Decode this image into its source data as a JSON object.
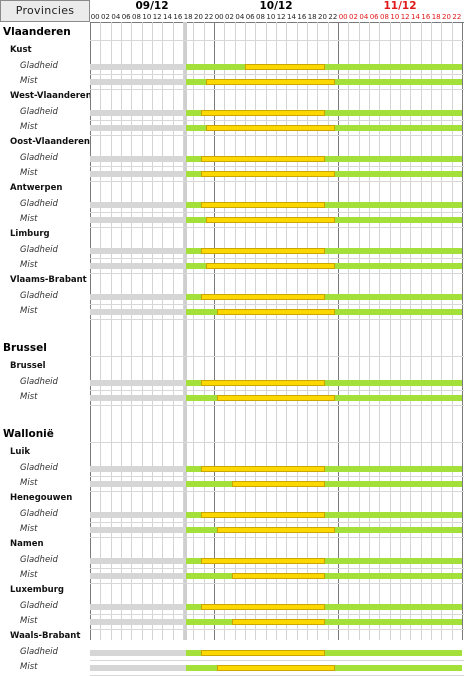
{
  "header": {
    "corner_label": "Provincies",
    "dates": [
      {
        "label": "09/12",
        "color": "#000000"
      },
      {
        "label": "10/12",
        "color": "#000000"
      },
      {
        "label": "11/12",
        "color": "#e01818"
      }
    ],
    "hours": [
      "00",
      "02",
      "04",
      "06",
      "08",
      "10",
      "12",
      "14",
      "16",
      "18",
      "20",
      "22"
    ]
  },
  "colors": {
    "past": "#d6d6d6",
    "green": "#a4e03a",
    "yellow": "#fdd700",
    "weekend": "#e01818"
  },
  "groups": [
    {
      "region": "Vlaanderen",
      "provinces": [
        {
          "name": "Kust",
          "rows": [
            {
              "label": "Gladheid",
              "segments": [
                {
                  "from": 0,
                  "to": 37,
                  "color": "past"
                },
                {
                  "from": 37,
                  "to": 144,
                  "color": "green"
                },
                {
                  "from": 60,
                  "to": 91,
                  "color": "yellow"
                }
              ]
            },
            {
              "label": "Mist",
              "segments": [
                {
                  "from": 0,
                  "to": 37,
                  "color": "past"
                },
                {
                  "from": 37,
                  "to": 144,
                  "color": "green"
                },
                {
                  "from": 45,
                  "to": 95,
                  "color": "yellow"
                }
              ]
            }
          ]
        },
        {
          "name": "West-Vlaanderen",
          "rows": [
            {
              "label": "Gladheid",
              "segments": [
                {
                  "from": 0,
                  "to": 37,
                  "color": "past"
                },
                {
                  "from": 37,
                  "to": 144,
                  "color": "green"
                },
                {
                  "from": 43,
                  "to": 91,
                  "color": "yellow"
                }
              ]
            },
            {
              "label": "Mist",
              "segments": [
                {
                  "from": 0,
                  "to": 37,
                  "color": "past"
                },
                {
                  "from": 37,
                  "to": 144,
                  "color": "green"
                },
                {
                  "from": 45,
                  "to": 95,
                  "color": "yellow"
                }
              ]
            }
          ]
        },
        {
          "name": "Oost-Vlaanderen",
          "rows": [
            {
              "label": "Gladheid",
              "segments": [
                {
                  "from": 0,
                  "to": 37,
                  "color": "past"
                },
                {
                  "from": 37,
                  "to": 144,
                  "color": "green"
                },
                {
                  "from": 43,
                  "to": 91,
                  "color": "yellow"
                }
              ]
            },
            {
              "label": "Mist",
              "segments": [
                {
                  "from": 0,
                  "to": 37,
                  "color": "past"
                },
                {
                  "from": 37,
                  "to": 144,
                  "color": "green"
                },
                {
                  "from": 43,
                  "to": 95,
                  "color": "yellow"
                }
              ]
            }
          ]
        },
        {
          "name": "Antwerpen",
          "rows": [
            {
              "label": "Gladheid",
              "segments": [
                {
                  "from": 0,
                  "to": 37,
                  "color": "past"
                },
                {
                  "from": 37,
                  "to": 144,
                  "color": "green"
                },
                {
                  "from": 43,
                  "to": 91,
                  "color": "yellow"
                }
              ]
            },
            {
              "label": "Mist",
              "segments": [
                {
                  "from": 0,
                  "to": 37,
                  "color": "past"
                },
                {
                  "from": 37,
                  "to": 144,
                  "color": "green"
                },
                {
                  "from": 45,
                  "to": 95,
                  "color": "yellow"
                }
              ]
            }
          ]
        },
        {
          "name": "Limburg",
          "rows": [
            {
              "label": "Gladheid",
              "segments": [
                {
                  "from": 0,
                  "to": 37,
                  "color": "past"
                },
                {
                  "from": 37,
                  "to": 144,
                  "color": "green"
                },
                {
                  "from": 43,
                  "to": 91,
                  "color": "yellow"
                }
              ]
            },
            {
              "label": "Mist",
              "segments": [
                {
                  "from": 0,
                  "to": 37,
                  "color": "past"
                },
                {
                  "from": 37,
                  "to": 144,
                  "color": "green"
                },
                {
                  "from": 45,
                  "to": 95,
                  "color": "yellow"
                }
              ]
            }
          ]
        },
        {
          "name": "Vlaams-Brabant",
          "rows": [
            {
              "label": "Gladheid",
              "segments": [
                {
                  "from": 0,
                  "to": 37,
                  "color": "past"
                },
                {
                  "from": 37,
                  "to": 144,
                  "color": "green"
                },
                {
                  "from": 43,
                  "to": 91,
                  "color": "yellow"
                }
              ]
            },
            {
              "label": "Mist",
              "segments": [
                {
                  "from": 0,
                  "to": 37,
                  "color": "past"
                },
                {
                  "from": 37,
                  "to": 144,
                  "color": "green"
                },
                {
                  "from": 49,
                  "to": 95,
                  "color": "yellow"
                }
              ]
            }
          ]
        }
      ]
    },
    {
      "region": "Brussel",
      "provinces": [
        {
          "name": "Brussel",
          "rows": [
            {
              "label": "Gladheid",
              "segments": [
                {
                  "from": 0,
                  "to": 37,
                  "color": "past"
                },
                {
                  "from": 37,
                  "to": 144,
                  "color": "green"
                },
                {
                  "from": 43,
                  "to": 91,
                  "color": "yellow"
                }
              ]
            },
            {
              "label": "Mist",
              "segments": [
                {
                  "from": 0,
                  "to": 37,
                  "color": "past"
                },
                {
                  "from": 37,
                  "to": 144,
                  "color": "green"
                },
                {
                  "from": 49,
                  "to": 95,
                  "color": "yellow"
                }
              ]
            }
          ]
        }
      ]
    },
    {
      "region": "Wallonië",
      "provinces": [
        {
          "name": "Luik",
          "rows": [
            {
              "label": "Gladheid",
              "segments": [
                {
                  "from": 0,
                  "to": 37,
                  "color": "past"
                },
                {
                  "from": 37,
                  "to": 144,
                  "color": "green"
                },
                {
                  "from": 43,
                  "to": 91,
                  "color": "yellow"
                }
              ]
            },
            {
              "label": "Mist",
              "segments": [
                {
                  "from": 0,
                  "to": 37,
                  "color": "past"
                },
                {
                  "from": 37,
                  "to": 144,
                  "color": "green"
                },
                {
                  "from": 55,
                  "to": 91,
                  "color": "yellow"
                }
              ]
            }
          ]
        },
        {
          "name": "Henegouwen",
          "rows": [
            {
              "label": "Gladheid",
              "segments": [
                {
                  "from": 0,
                  "to": 37,
                  "color": "past"
                },
                {
                  "from": 37,
                  "to": 144,
                  "color": "green"
                },
                {
                  "from": 43,
                  "to": 91,
                  "color": "yellow"
                }
              ]
            },
            {
              "label": "Mist",
              "segments": [
                {
                  "from": 0,
                  "to": 37,
                  "color": "past"
                },
                {
                  "from": 37,
                  "to": 144,
                  "color": "green"
                },
                {
                  "from": 49,
                  "to": 95,
                  "color": "yellow"
                }
              ]
            }
          ]
        },
        {
          "name": "Namen",
          "rows": [
            {
              "label": "Gladheid",
              "segments": [
                {
                  "from": 0,
                  "to": 37,
                  "color": "past"
                },
                {
                  "from": 37,
                  "to": 144,
                  "color": "green"
                },
                {
                  "from": 43,
                  "to": 91,
                  "color": "yellow"
                }
              ]
            },
            {
              "label": "Mist",
              "segments": [
                {
                  "from": 0,
                  "to": 37,
                  "color": "past"
                },
                {
                  "from": 37,
                  "to": 144,
                  "color": "green"
                },
                {
                  "from": 55,
                  "to": 91,
                  "color": "yellow"
                }
              ]
            }
          ]
        },
        {
          "name": "Luxemburg",
          "rows": [
            {
              "label": "Gladheid",
              "segments": [
                {
                  "from": 0,
                  "to": 37,
                  "color": "past"
                },
                {
                  "from": 37,
                  "to": 144,
                  "color": "green"
                },
                {
                  "from": 43,
                  "to": 91,
                  "color": "yellow"
                }
              ]
            },
            {
              "label": "Mist",
              "segments": [
                {
                  "from": 0,
                  "to": 37,
                  "color": "past"
                },
                {
                  "from": 37,
                  "to": 144,
                  "color": "green"
                },
                {
                  "from": 55,
                  "to": 91,
                  "color": "yellow"
                }
              ]
            }
          ]
        },
        {
          "name": "Waals-Brabant",
          "rows": [
            {
              "label": "Gladheid",
              "segments": [
                {
                  "from": 0,
                  "to": 37,
                  "color": "past"
                },
                {
                  "from": 37,
                  "to": 144,
                  "color": "green"
                },
                {
                  "from": 43,
                  "to": 91,
                  "color": "yellow"
                }
              ]
            },
            {
              "label": "Mist",
              "segments": [
                {
                  "from": 0,
                  "to": 37,
                  "color": "past"
                },
                {
                  "from": 37,
                  "to": 144,
                  "color": "green"
                },
                {
                  "from": 49,
                  "to": 95,
                  "color": "yellow"
                }
              ]
            }
          ]
        }
      ]
    }
  ]
}
